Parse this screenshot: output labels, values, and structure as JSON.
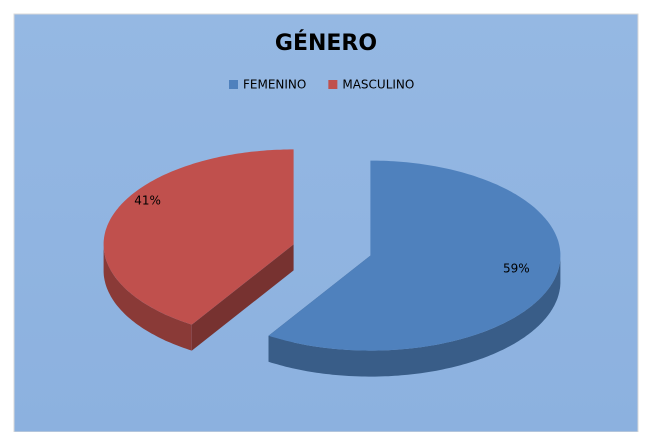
{
  "chart_data": {
    "type": "pie3d",
    "title": "GÉNERO",
    "categories": [
      "FEMENINO",
      "MASCULINO"
    ],
    "values": [
      59,
      41
    ],
    "value_labels": [
      "59%",
      "41%"
    ],
    "colors": [
      "#4f81bd",
      "#c0504d"
    ],
    "legend": "top"
  }
}
